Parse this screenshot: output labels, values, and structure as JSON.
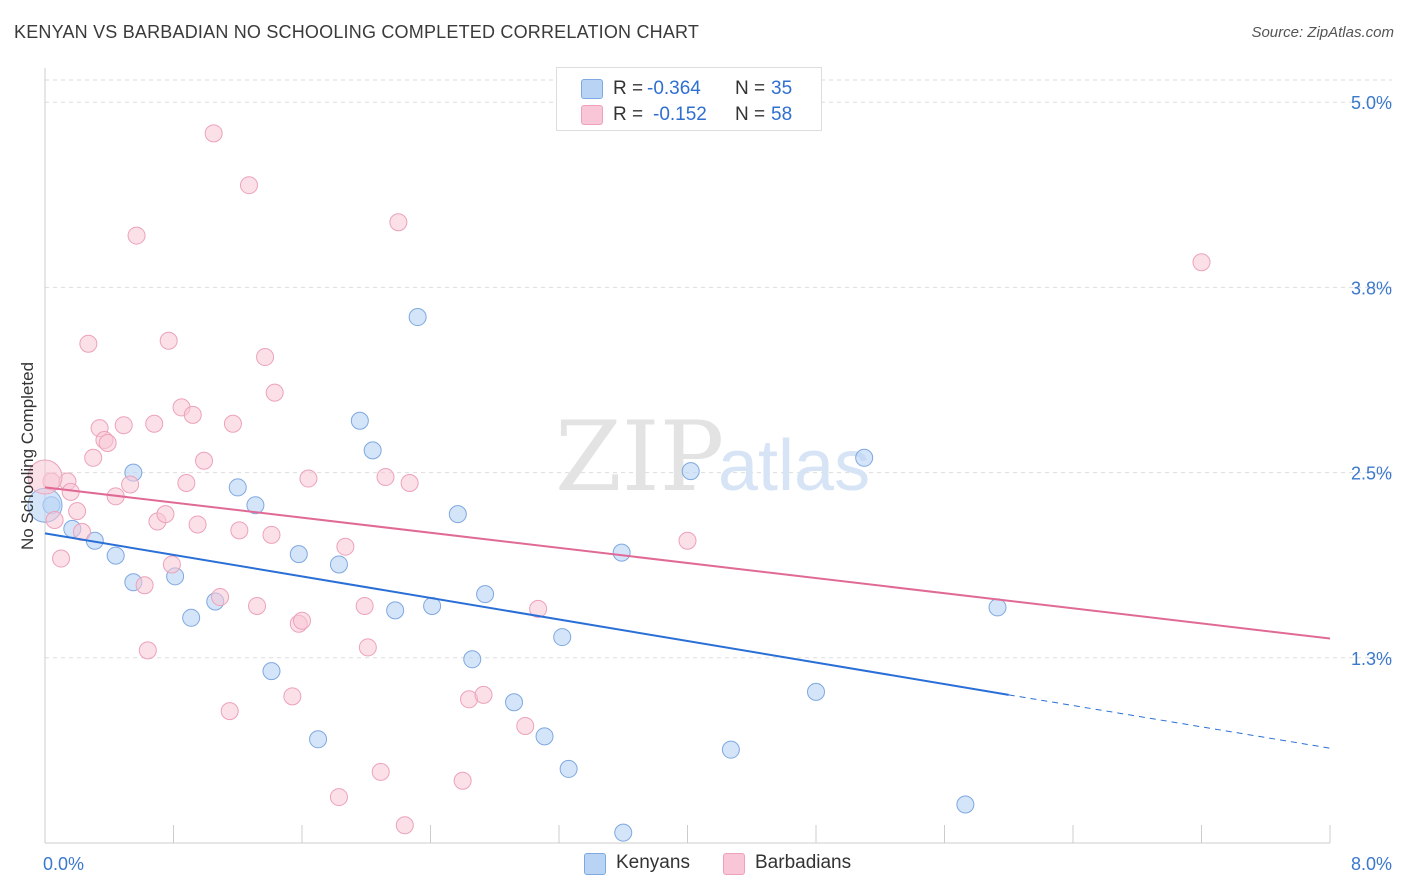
{
  "title": "KENYAN VS BARBADIAN NO SCHOOLING COMPLETED CORRELATION CHART",
  "source": "Source: ZipAtlas.com",
  "watermark": {
    "zip": "ZIP",
    "atlas": "atlas"
  },
  "legend": {
    "rows": [
      {
        "r_label": "R =",
        "r_value": "-0.364",
        "n_label": "N =",
        "n_value": "35"
      },
      {
        "r_label": "R =",
        "r_value": "-0.152",
        "n_label": "N =",
        "n_value": "58"
      }
    ]
  },
  "bottom_legend": {
    "kenyans": "Kenyans",
    "barbadians": "Barbadians"
  },
  "colors": {
    "kenyans_fill": "#b9d3f5",
    "kenyans_stroke": "#7ea8e0",
    "kenyans_line": "#2a6fd6",
    "barbadians_fill": "#f8c6d6",
    "barbadians_stroke": "#eda2ba",
    "barbadians_line": "#e06a95",
    "tick_label": "#3b78cc",
    "grid": "#dddddd"
  },
  "chart_data": {
    "type": "scatter",
    "title": "KENYAN VS BARBADIAN NO SCHOOLING COMPLETED CORRELATION CHART",
    "xlabel": "",
    "ylabel": "No Schooling Completed",
    "xlim": [
      0.0,
      8.0
    ],
    "ylim": [
      0.0,
      5.15
    ],
    "x_tick_labels": [
      "0.0%",
      "8.0%"
    ],
    "y_ticks": [
      1.25,
      2.5,
      3.75,
      5.0
    ],
    "y_tick_labels": [
      "1.3%",
      "2.5%",
      "3.8%",
      "5.0%"
    ],
    "grid": "horizontal dashed",
    "series": [
      {
        "name": "Kenyans",
        "points": [
          [
            0.04,
            2.28
          ],
          [
            0.17,
            2.12
          ],
          [
            0.31,
            2.04
          ],
          [
            0.44,
            1.94
          ],
          [
            0.55,
            2.5
          ],
          [
            0.55,
            1.76
          ],
          [
            0.81,
            1.8
          ],
          [
            0.91,
            1.52
          ],
          [
            1.06,
            1.63
          ],
          [
            1.2,
            2.4
          ],
          [
            1.31,
            2.28
          ],
          [
            1.41,
            1.16
          ],
          [
            1.58,
            1.95
          ],
          [
            1.7,
            0.7
          ],
          [
            1.83,
            1.88
          ],
          [
            1.96,
            2.85
          ],
          [
            2.04,
            2.65
          ],
          [
            2.18,
            1.57
          ],
          [
            2.32,
            3.55
          ],
          [
            2.41,
            1.6
          ],
          [
            2.57,
            2.22
          ],
          [
            2.66,
            1.24
          ],
          [
            2.74,
            1.68
          ],
          [
            2.92,
            0.95
          ],
          [
            3.11,
            0.72
          ],
          [
            3.26,
            0.5
          ],
          [
            3.22,
            1.39
          ],
          [
            3.6,
            0.07
          ],
          [
            3.59,
            1.96
          ],
          [
            4.02,
            2.51
          ],
          [
            4.27,
            0.63
          ],
          [
            4.8,
            1.02
          ],
          [
            5.1,
            2.6
          ],
          [
            5.73,
            0.26
          ],
          [
            5.93,
            1.59
          ]
        ],
        "trend": {
          "x0": 0.0,
          "y0": 2.09,
          "x1": 6.0,
          "y1": 1.0,
          "dash_to_x": 8.0,
          "dash_to_y": 0.64
        }
      },
      {
        "name": "Barbadians",
        "points": [
          [
            0.04,
            2.44
          ],
          [
            0.06,
            2.18
          ],
          [
            0.1,
            1.92
          ],
          [
            0.14,
            2.44
          ],
          [
            0.16,
            2.37
          ],
          [
            0.2,
            2.24
          ],
          [
            0.23,
            2.1
          ],
          [
            0.27,
            3.37
          ],
          [
            0.3,
            2.6
          ],
          [
            0.34,
            2.8
          ],
          [
            0.37,
            2.72
          ],
          [
            0.39,
            2.7
          ],
          [
            0.44,
            2.34
          ],
          [
            0.49,
            2.82
          ],
          [
            0.53,
            2.42
          ],
          [
            0.57,
            4.1
          ],
          [
            0.62,
            1.74
          ],
          [
            0.64,
            1.3
          ],
          [
            0.68,
            2.83
          ],
          [
            0.7,
            2.17
          ],
          [
            0.75,
            2.22
          ],
          [
            0.77,
            3.39
          ],
          [
            0.79,
            1.88
          ],
          [
            0.85,
            2.94
          ],
          [
            0.88,
            2.43
          ],
          [
            0.92,
            2.89
          ],
          [
            0.95,
            2.15
          ],
          [
            0.99,
            2.58
          ],
          [
            1.05,
            4.79
          ],
          [
            1.09,
            1.66
          ],
          [
            1.15,
            0.89
          ],
          [
            1.17,
            2.83
          ],
          [
            1.21,
            2.11
          ],
          [
            1.27,
            4.44
          ],
          [
            1.32,
            1.6
          ],
          [
            1.37,
            3.28
          ],
          [
            1.41,
            2.08
          ],
          [
            1.43,
            3.04
          ],
          [
            1.54,
            0.99
          ],
          [
            1.58,
            1.48
          ],
          [
            1.6,
            1.5
          ],
          [
            1.64,
            2.46
          ],
          [
            1.83,
            0.31
          ],
          [
            1.87,
            2.0
          ],
          [
            1.99,
            1.6
          ],
          [
            2.01,
            1.32
          ],
          [
            2.09,
            0.48
          ],
          [
            2.12,
            2.47
          ],
          [
            2.2,
            4.19
          ],
          [
            2.24,
            0.12
          ],
          [
            2.27,
            2.43
          ],
          [
            2.6,
            0.42
          ],
          [
            2.64,
            0.97
          ],
          [
            2.73,
            1.0
          ],
          [
            2.99,
            0.79
          ],
          [
            3.07,
            1.58
          ],
          [
            4.0,
            2.04
          ],
          [
            7.2,
            3.92
          ]
        ],
        "trend": {
          "x0": 0.0,
          "y0": 2.4,
          "x1": 8.0,
          "y1": 1.38
        }
      }
    ]
  }
}
